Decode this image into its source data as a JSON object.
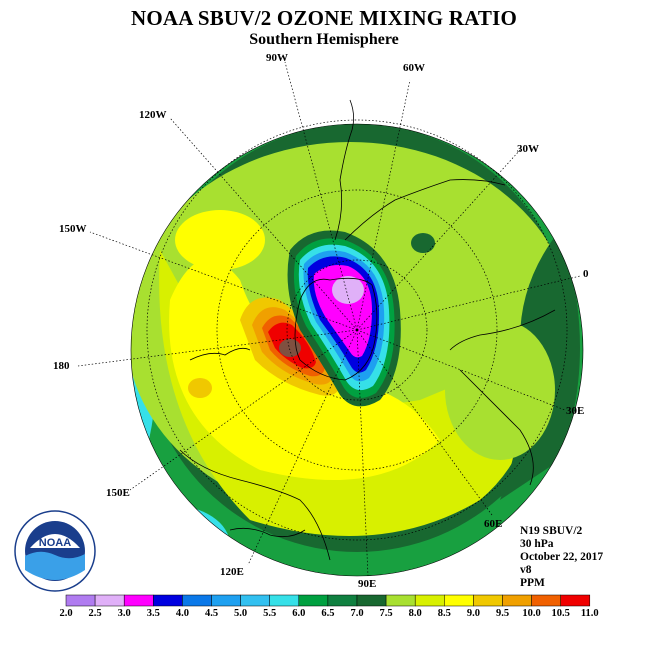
{
  "title": "NOAA SBUV/2 OZONE MIXING RATIO",
  "subtitle": "Southern Hemisphere",
  "longitude_labels": {
    "w90": "90W",
    "w60": "60W",
    "w120": "120W",
    "w30": "30W",
    "w150": "150W",
    "e0": "0",
    "e180": "180",
    "e30": "30E",
    "e150": "150E",
    "e60": "60E",
    "e120": "120E",
    "e90": "90E"
  },
  "info": {
    "satellite": "N19 SBUV/2",
    "level": "30 hPa",
    "date": "October 22, 2017",
    "version": "v8",
    "units": "PPM"
  },
  "logo": {
    "text": "NOAA",
    "ring_text": "NATIONAL OCEANIC AND ATMOSPHERIC ADMINISTRATION · U.S. DEPARTMENT OF COMMERCE"
  },
  "colorbar": {
    "labels": [
      "2.0",
      "2.5",
      "3.0",
      "3.5",
      "4.0",
      "4.5",
      "5.0",
      "5.5",
      "6.0",
      "6.5",
      "7.0",
      "7.5",
      "8.0",
      "8.5",
      "9.0",
      "9.5",
      "10.0",
      "10.5",
      "11.0"
    ],
    "colors": [
      "#b07cf0",
      "#e0b0f8",
      "#ff00ff",
      "#0000e0",
      "#0a78e8",
      "#1ea0f0",
      "#32c0f0",
      "#36e0e8",
      "#00a040",
      "#108040",
      "#186830",
      "#a8e030",
      "#d8f000",
      "#ffff00",
      "#f0c800",
      "#f0a000",
      "#f06000",
      "#f00000",
      "#805040"
    ]
  }
}
